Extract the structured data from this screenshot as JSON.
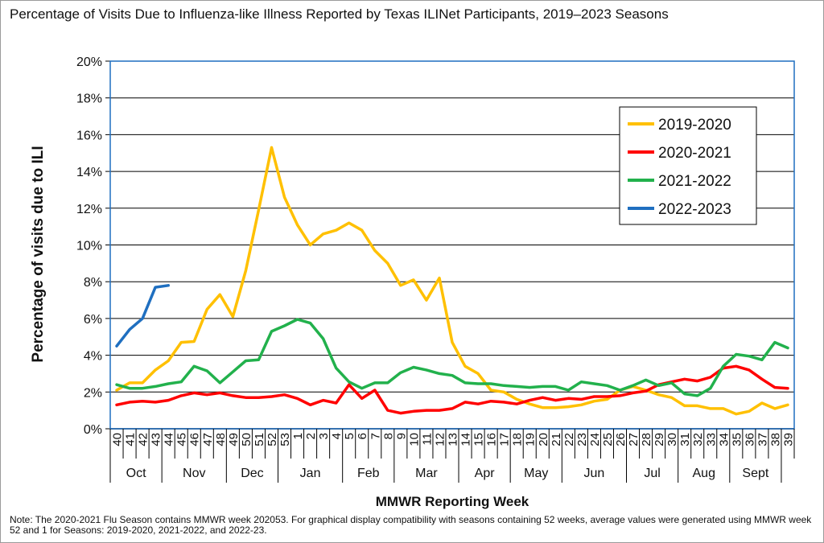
{
  "title": "Percentage of Visits Due to Influenza-like Illness Reported by Texas ILINet Participants, 2019–2023 Seasons",
  "note": "Note: The 2020-2021 Flu Season contains MMWR week 202053. For graphical display compatibility with seasons containing 52 weeks, average values were generated using MMWR week 52 and 1 for Seasons: 2019-2020, 2021-2022, and 2022-23.",
  "chart_data": {
    "type": "line",
    "title": "Percentage of Visits Due to Influenza-like Illness Reported by Texas ILINet Participants, 2019–2023 Seasons",
    "xlabel": "MMWR Reporting Week",
    "ylabel": "Percentage of visits due to ILI",
    "ylim": [
      0,
      20
    ],
    "yticks": [
      "0%",
      "2%",
      "4%",
      "6%",
      "8%",
      "10%",
      "12%",
      "14%",
      "16%",
      "18%",
      "20%"
    ],
    "grid": true,
    "legend_position": "top-right",
    "categories": [
      "40",
      "41",
      "42",
      "43",
      "44",
      "45",
      "46",
      "47",
      "48",
      "49",
      "50",
      "51",
      "52",
      "53",
      "1",
      "2",
      "3",
      "4",
      "5",
      "6",
      "7",
      "8",
      "9",
      "10",
      "11",
      "12",
      "13",
      "14",
      "15",
      "16",
      "17",
      "18",
      "19",
      "20",
      "21",
      "22",
      "23",
      "24",
      "25",
      "26",
      "27",
      "28",
      "29",
      "30",
      "31",
      "32",
      "33",
      "34",
      "35",
      "36",
      "37",
      "38",
      "39"
    ],
    "months": [
      {
        "label": "Oct",
        "from": "40",
        "to": "44"
      },
      {
        "label": "Nov",
        "from": "44",
        "to": "49"
      },
      {
        "label": "Dec",
        "from": "49",
        "to": "53"
      },
      {
        "label": "Jan",
        "from": "53",
        "to": "5"
      },
      {
        "label": "Feb",
        "from": "5",
        "to": "9"
      },
      {
        "label": "Mar",
        "from": "9",
        "to": "14"
      },
      {
        "label": "Apr",
        "from": "14",
        "to": "18"
      },
      {
        "label": "May",
        "from": "18",
        "to": "22"
      },
      {
        "label": "Jun",
        "from": "22",
        "to": "27"
      },
      {
        "label": "Jul",
        "from": "27",
        "to": "31"
      },
      {
        "label": "Aug",
        "from": "31",
        "to": "35"
      },
      {
        "label": "Sept",
        "from": "35",
        "to": "39"
      }
    ],
    "series": [
      {
        "name": "2019-2020",
        "color": "#FFC000",
        "values": [
          2.1,
          2.5,
          2.5,
          3.2,
          3.7,
          4.7,
          4.75,
          6.5,
          7.3,
          6.1,
          8.6,
          11.9,
          15.3,
          12.6,
          11.1,
          10.0,
          10.6,
          10.8,
          11.2,
          10.8,
          9.7,
          9.0,
          7.8,
          8.1,
          7.0,
          8.2,
          4.7,
          3.4,
          3.0,
          2.1,
          2.0,
          1.6,
          1.35,
          1.15,
          1.15,
          1.2,
          1.3,
          1.5,
          1.6,
          2.1,
          2.3,
          2.1,
          1.85,
          1.7,
          1.25,
          1.25,
          1.1,
          1.1,
          0.8,
          0.95,
          1.4,
          1.1,
          1.3
        ]
      },
      {
        "name": "2020-2021",
        "color": "#FF0000",
        "values": [
          1.3,
          1.45,
          1.5,
          1.45,
          1.55,
          1.8,
          1.95,
          1.85,
          1.95,
          1.8,
          1.7,
          1.7,
          1.75,
          1.85,
          1.65,
          1.3,
          1.55,
          1.4,
          2.4,
          1.65,
          2.1,
          1.0,
          0.85,
          0.95,
          1.0,
          1.0,
          1.1,
          1.45,
          1.35,
          1.5,
          1.45,
          1.35,
          1.55,
          1.7,
          1.55,
          1.65,
          1.6,
          1.75,
          1.75,
          1.8,
          1.95,
          2.05,
          2.4,
          2.55,
          2.7,
          2.6,
          2.8,
          3.3,
          3.4,
          3.2,
          2.7,
          2.25,
          2.2
        ]
      },
      {
        "name": "2021-2022",
        "color": "#22B14C",
        "values": [
          2.4,
          2.2,
          2.2,
          2.3,
          2.45,
          2.55,
          3.4,
          3.15,
          2.5,
          3.1,
          3.7,
          3.75,
          5.3,
          5.6,
          5.95,
          5.75,
          4.9,
          3.3,
          2.55,
          2.2,
          2.5,
          2.5,
          3.05,
          3.35,
          3.2,
          3.0,
          2.9,
          2.5,
          2.45,
          2.45,
          2.35,
          2.3,
          2.25,
          2.3,
          2.3,
          2.1,
          2.55,
          2.45,
          2.35,
          2.1,
          2.35,
          2.65,
          2.35,
          2.5,
          1.9,
          1.8,
          2.2,
          3.4,
          4.05,
          3.95,
          3.75,
          4.7,
          4.4
        ]
      },
      {
        "name": "2022-2023",
        "color": "#1F6FC0",
        "values": [
          4.5,
          5.4,
          6.0,
          7.7,
          7.8,
          null,
          null,
          null,
          null,
          null,
          null,
          null,
          null,
          null,
          null,
          null,
          null,
          null,
          null,
          null,
          null,
          null,
          null,
          null,
          null,
          null,
          null,
          null,
          null,
          null,
          null,
          null,
          null,
          null,
          null,
          null,
          null,
          null,
          null,
          null,
          null,
          null,
          null,
          null,
          null,
          null,
          null,
          null,
          null,
          null,
          null,
          null,
          null
        ]
      }
    ]
  }
}
